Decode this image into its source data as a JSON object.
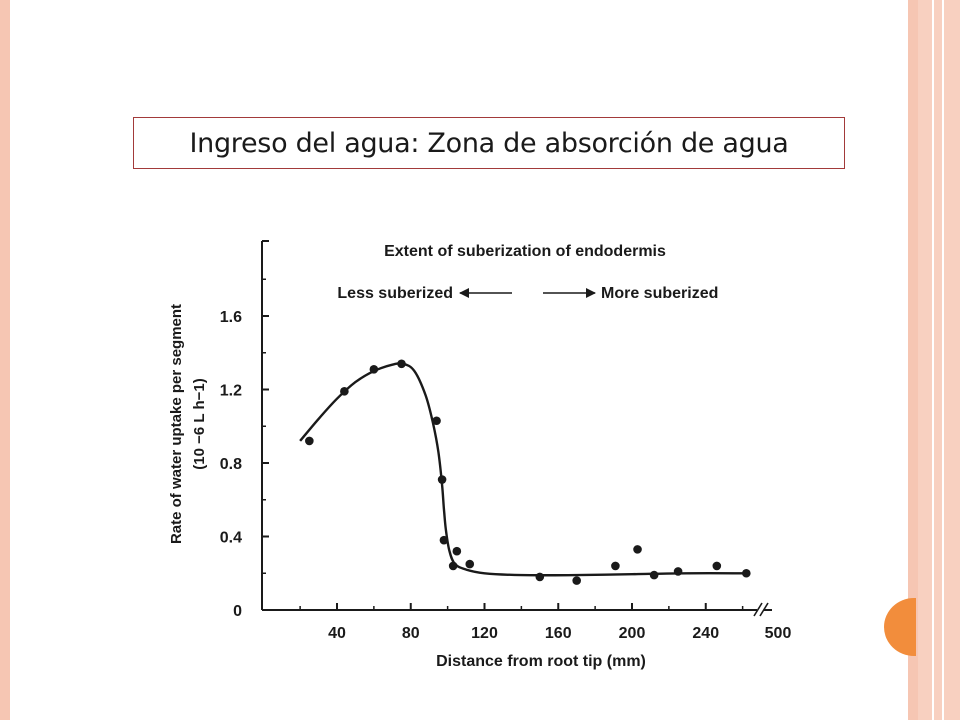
{
  "slide": {
    "title": "Ingreso del agua: Zona de absorción de agua"
  },
  "colors": {
    "frame": "#f6c6b3",
    "title_border": "#a23a3a",
    "accent_tab": "#f28d3c",
    "ink": "#1a1a1a"
  },
  "chart_data": {
    "type": "scatter",
    "title": "Extent of suberization of endodermis",
    "annotations": {
      "left": "Less suberized",
      "right": "More suberized"
    },
    "xlabel": "Distance from root tip (mm)",
    "ylabel_line1": "Rate of water uptake per segment",
    "ylabel_line2": "(10 −6 L h−1)",
    "x_ticks": [
      "40",
      "80",
      "120",
      "160",
      "200",
      "240"
    ],
    "x_break_label": "500",
    "y_ticks": [
      "0",
      "0.4",
      "0.8",
      "1.2",
      "1.6"
    ],
    "xlim": [
      10,
      270
    ],
    "ylim": [
      0,
      2.0
    ],
    "points": {
      "x": [
        25,
        44,
        60,
        75,
        94,
        97,
        98,
        103,
        105,
        112,
        150,
        170,
        191,
        203,
        212,
        225,
        246,
        262
      ],
      "y": [
        0.92,
        1.19,
        1.31,
        1.34,
        1.03,
        0.71,
        0.38,
        0.24,
        0.32,
        0.25,
        0.18,
        0.16,
        0.24,
        0.33,
        0.19,
        0.21,
        0.24,
        0.2
      ]
    },
    "fit_curve": {
      "x": [
        20,
        30,
        40,
        50,
        60,
        70,
        76,
        82,
        88,
        92,
        95,
        97,
        98,
        99,
        101,
        104,
        110,
        120,
        140,
        170,
        200,
        230,
        262
      ],
      "y": [
        0.92,
        1.04,
        1.15,
        1.24,
        1.3,
        1.335,
        1.34,
        1.3,
        1.17,
        1.02,
        0.86,
        0.68,
        0.55,
        0.44,
        0.32,
        0.25,
        0.22,
        0.2,
        0.19,
        0.19,
        0.195,
        0.2,
        0.2
      ]
    }
  }
}
